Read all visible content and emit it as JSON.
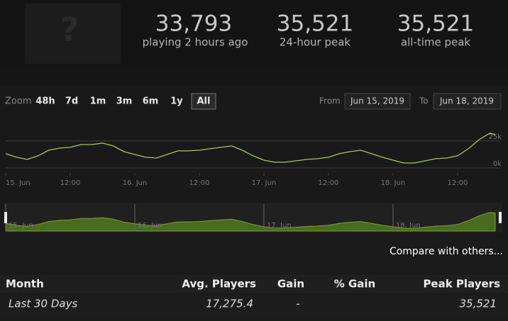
{
  "stats": [
    {
      "value": "33,793",
      "label": "playing 2 hours ago"
    },
    {
      "value": "35,521",
      "label": "24-hour peak"
    },
    {
      "value": "35,521",
      "label": "all-time peak"
    }
  ],
  "image_placeholder": "?",
  "zoom": {
    "label": "Zoom",
    "buttons": [
      "48h",
      "7d",
      "1m",
      "3m",
      "6m",
      "1y",
      "All"
    ],
    "selected": 6
  },
  "range": {
    "from_label": "From",
    "from": "Jun 15, 2019",
    "to_label": "To",
    "to": "Jun 18, 2019"
  },
  "chart_data": {
    "type": "line",
    "x": [
      0,
      2,
      4,
      6,
      8,
      10,
      12,
      14,
      16,
      18,
      20,
      22,
      24,
      26,
      28,
      30,
      32,
      34,
      36,
      38,
      40,
      42,
      44,
      46,
      48,
      50,
      52,
      54,
      56,
      58,
      60,
      62,
      64,
      66,
      68,
      70,
      72,
      74,
      76,
      78,
      80,
      82,
      84,
      86,
      88,
      90,
      91
    ],
    "series": [
      {
        "color": "#a4c564",
        "values": [
          13200,
          9900,
          7900,
          11200,
          16400,
          18400,
          19100,
          21700,
          21700,
          23000,
          20400,
          15100,
          12500,
          9900,
          9200,
          12500,
          15800,
          15800,
          16400,
          17800,
          19100,
          20400,
          16400,
          11200,
          7200,
          5300,
          5300,
          6600,
          7900,
          8600,
          9900,
          13200,
          15100,
          16400,
          13200,
          9900,
          7200,
          4600,
          4600,
          6600,
          8600,
          9200,
          11200,
          17800,
          26300,
          32200,
          30900
        ]
      }
    ],
    "xlim": [
      0,
      91
    ],
    "xticks": [
      {
        "value": 0,
        "label": "15. Jun"
      },
      {
        "value": 12,
        "label": "12:00"
      },
      {
        "value": 24,
        "label": "16. Jun"
      },
      {
        "value": 36,
        "label": "12:00"
      },
      {
        "value": 48,
        "label": "17. Jun"
      },
      {
        "value": 60,
        "label": "12:00"
      },
      {
        "value": 72,
        "label": "18. Jun"
      },
      {
        "value": 84,
        "label": "12:00"
      }
    ],
    "ylim": [
      0,
      44000
    ],
    "yticks": [
      {
        "value": 0,
        "label": "0k"
      },
      {
        "value": 25000,
        "label": "25k"
      }
    ],
    "grid": true,
    "navigator": true
  },
  "compare": "Compare with others...",
  "table": {
    "headers": [
      "Month",
      "Avg. Players",
      "Gain",
      "% Gain",
      "Peak Players"
    ],
    "rows": [
      [
        "Last 30 Days",
        "17,275.4",
        "-",
        "",
        "35,521"
      ]
    ]
  }
}
